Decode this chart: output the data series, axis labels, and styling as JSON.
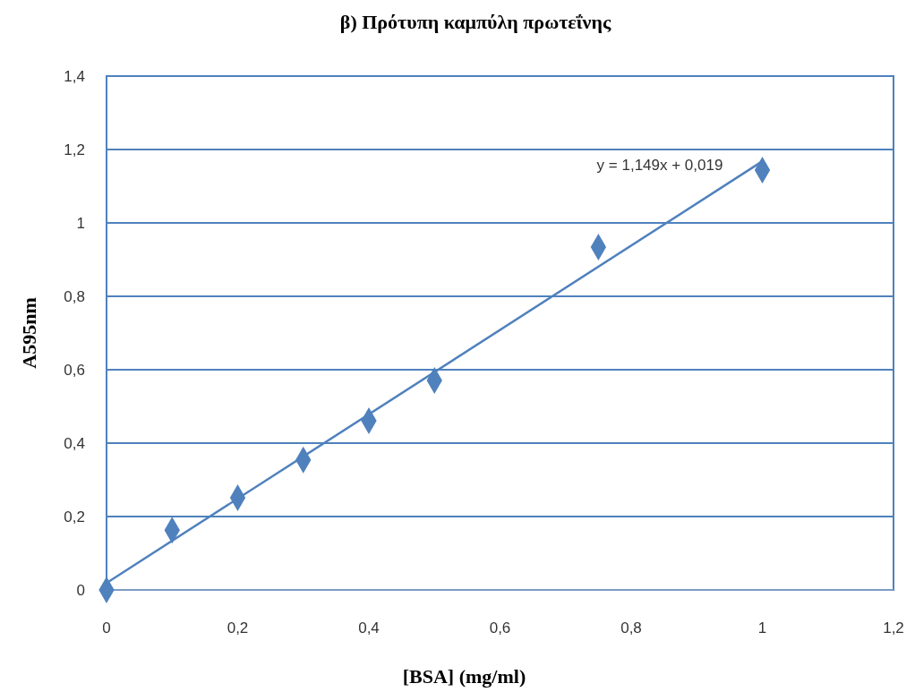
{
  "chart_data": {
    "type": "scatter",
    "title": "β) Πρότυπη καμπύλη πρωτεΐνης",
    "xlabel": "[BSA] (mg/ml)",
    "ylabel": "A595nm",
    "x": [
      0,
      0.1,
      0.2,
      0.3,
      0.4,
      0.5,
      0.75,
      1
    ],
    "series": [
      {
        "color": "#4f81bd",
        "marker": "diamond",
        "values": [
          0,
          0.163,
          0.251,
          0.354,
          0.461,
          0.571,
          0.934,
          1.144
        ]
      },
      {
        "type": "line",
        "color": "#4f81bd",
        "marker": "none",
        "x": [
          0,
          1
        ],
        "values": [
          0.019,
          1.168
        ]
      }
    ],
    "grid": "y",
    "xlim": [
      0,
      1.2
    ],
    "ylim": [
      0,
      1.4
    ],
    "xticks": [
      0,
      {
        "value": 0.2,
        "label": "0,2"
      },
      {
        "value": 0.4,
        "label": "0,4"
      },
      {
        "value": 0.6,
        "label": "0,6"
      },
      {
        "value": 0.8,
        "label": "0,8"
      },
      1,
      {
        "value": 1.2,
        "label": "1,2"
      }
    ],
    "yticks": [
      0,
      {
        "value": 0.2,
        "label": "0,2"
      },
      {
        "value": 0.4,
        "label": "0,4"
      },
      {
        "value": 0.6,
        "label": "0,6"
      },
      {
        "value": 0.8,
        "label": "0,8"
      },
      1,
      {
        "value": 1.2,
        "label": "1,2"
      },
      {
        "value": 1.4,
        "label": "1,4"
      }
    ],
    "annotations": [
      "y = 1,149x + 0,019"
    ]
  }
}
